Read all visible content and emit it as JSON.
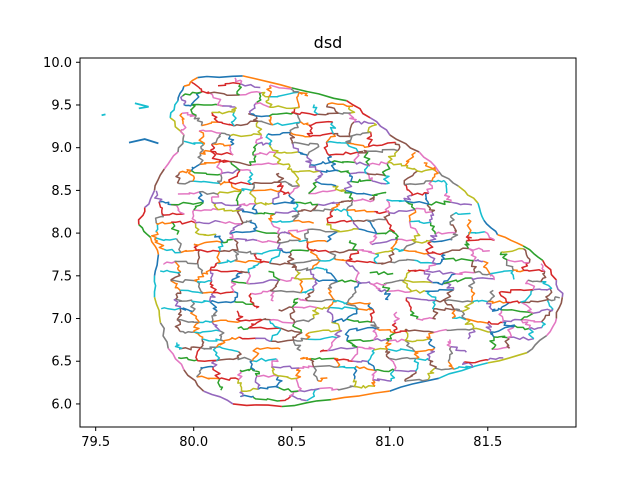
{
  "chart_data": {
    "type": "map",
    "title": "dsd",
    "xlabel": "",
    "ylabel": "",
    "xlim": [
      79.42,
      81.95
    ],
    "ylim": [
      5.73,
      10.05
    ],
    "xticks": [
      "79.5",
      "80.0",
      "80.5",
      "81.0",
      "81.5"
    ],
    "xtick_values": [
      79.5,
      80.0,
      80.5,
      81.0,
      81.5
    ],
    "yticks": [
      "6.0",
      "6.5",
      "7.0",
      "7.5",
      "8.0",
      "8.5",
      "9.0",
      "9.5",
      "10.0"
    ],
    "ytick_values": [
      6.0,
      6.5,
      7.0,
      7.5,
      8.0,
      8.5,
      9.0,
      9.5,
      10.0
    ],
    "grid": false,
    "legend": "none",
    "palette": [
      "#1f77b4",
      "#ff7f0e",
      "#2ca02c",
      "#d62728",
      "#9467bd",
      "#8c564b",
      "#e377c2",
      "#7f7f7f",
      "#bcbd22",
      "#17becf"
    ],
    "outline": [
      [
        80.02,
        9.82
      ],
      [
        80.25,
        9.84
      ],
      [
        80.5,
        9.7
      ],
      [
        80.78,
        9.55
      ],
      [
        80.9,
        9.35
      ],
      [
        81.0,
        9.15
      ],
      [
        81.15,
        8.95
      ],
      [
        81.25,
        8.72
      ],
      [
        81.35,
        8.55
      ],
      [
        81.45,
        8.35
      ],
      [
        81.48,
        8.15
      ],
      [
        81.55,
        7.98
      ],
      [
        81.68,
        7.85
      ],
      [
        81.78,
        7.68
      ],
      [
        81.85,
        7.45
      ],
      [
        81.88,
        7.25
      ],
      [
        81.85,
        7.0
      ],
      [
        81.8,
        6.8
      ],
      [
        81.7,
        6.6
      ],
      [
        81.5,
        6.48
      ],
      [
        81.25,
        6.3
      ],
      [
        81.0,
        6.15
      ],
      [
        80.7,
        6.05
      ],
      [
        80.45,
        5.97
      ],
      [
        80.2,
        6.0
      ],
      [
        80.05,
        6.15
      ],
      [
        79.95,
        6.4
      ],
      [
        79.87,
        6.65
      ],
      [
        79.83,
        6.95
      ],
      [
        79.8,
        7.25
      ],
      [
        79.8,
        7.5
      ],
      [
        79.82,
        7.75
      ],
      [
        79.78,
        7.95
      ],
      [
        79.72,
        8.1
      ],
      [
        79.75,
        8.3
      ],
      [
        79.8,
        8.5
      ],
      [
        79.85,
        8.75
      ],
      [
        79.92,
        8.95
      ],
      [
        79.95,
        9.15
      ],
      [
        79.88,
        9.35
      ],
      [
        79.92,
        9.55
      ],
      [
        79.95,
        9.72
      ]
    ],
    "islands": [
      [
        [
          79.7,
          9.52
        ],
        [
          79.77,
          9.48
        ],
        [
          79.72,
          9.46
        ]
      ],
      [
        [
          79.55,
          9.39
        ],
        [
          79.53,
          9.38
        ]
      ],
      [
        [
          79.67,
          9.06
        ],
        [
          79.75,
          9.1
        ],
        [
          79.82,
          9.05
        ]
      ]
    ]
  }
}
